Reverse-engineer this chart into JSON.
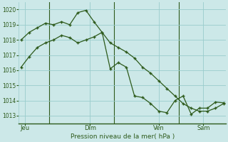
{
  "title": "Pression niveau de la mer( hPa )",
  "bg_color": "#cce8e8",
  "grid_color": "#99cccc",
  "line_color": "#2d5a1b",
  "marker_color": "#2d5a1b",
  "ylim": [
    1012.5,
    1020.5
  ],
  "yticks": [
    1013,
    1014,
    1015,
    1016,
    1017,
    1018,
    1019,
    1020
  ],
  "xlim": [
    -0.3,
    25.3
  ],
  "day_labels": [
    "Jeu",
    "Dim",
    "Ven",
    "Sam"
  ],
  "day_positions": [
    0.5,
    8.5,
    17.0,
    22.5
  ],
  "vline_positions": [
    3.5,
    11.5,
    19.5
  ],
  "series1_x": [
    0,
    1,
    2,
    3,
    4,
    5,
    6,
    7,
    8,
    9,
    10,
    11,
    12,
    13,
    14,
    15,
    16,
    17,
    18,
    19,
    20,
    21,
    22,
    23,
    24,
    25
  ],
  "series1_y": [
    1016.2,
    1016.9,
    1017.5,
    1017.8,
    1018.0,
    1018.3,
    1018.15,
    1017.8,
    1018.0,
    1018.2,
    1018.5,
    1017.8,
    1017.5,
    1017.2,
    1016.8,
    1016.2,
    1015.8,
    1015.3,
    1014.8,
    1014.3,
    1013.8,
    1013.5,
    1013.3,
    1013.3,
    1013.5,
    1013.8
  ],
  "series2_x": [
    0,
    1,
    2,
    3,
    4,
    5,
    6,
    7,
    8,
    9,
    10,
    11,
    12,
    13,
    14,
    15,
    16,
    17,
    18,
    19,
    20,
    21,
    22,
    23,
    24,
    25
  ],
  "series2_y": [
    1018.0,
    1018.5,
    1018.8,
    1019.1,
    1019.0,
    1019.2,
    1019.0,
    1019.8,
    1019.95,
    1019.2,
    1018.5,
    1016.1,
    1016.5,
    1016.2,
    1014.3,
    1014.2,
    1013.8,
    1013.3,
    1013.2,
    1014.0,
    1014.3,
    1013.1,
    1013.5,
    1013.5,
    1013.9,
    1013.85
  ]
}
